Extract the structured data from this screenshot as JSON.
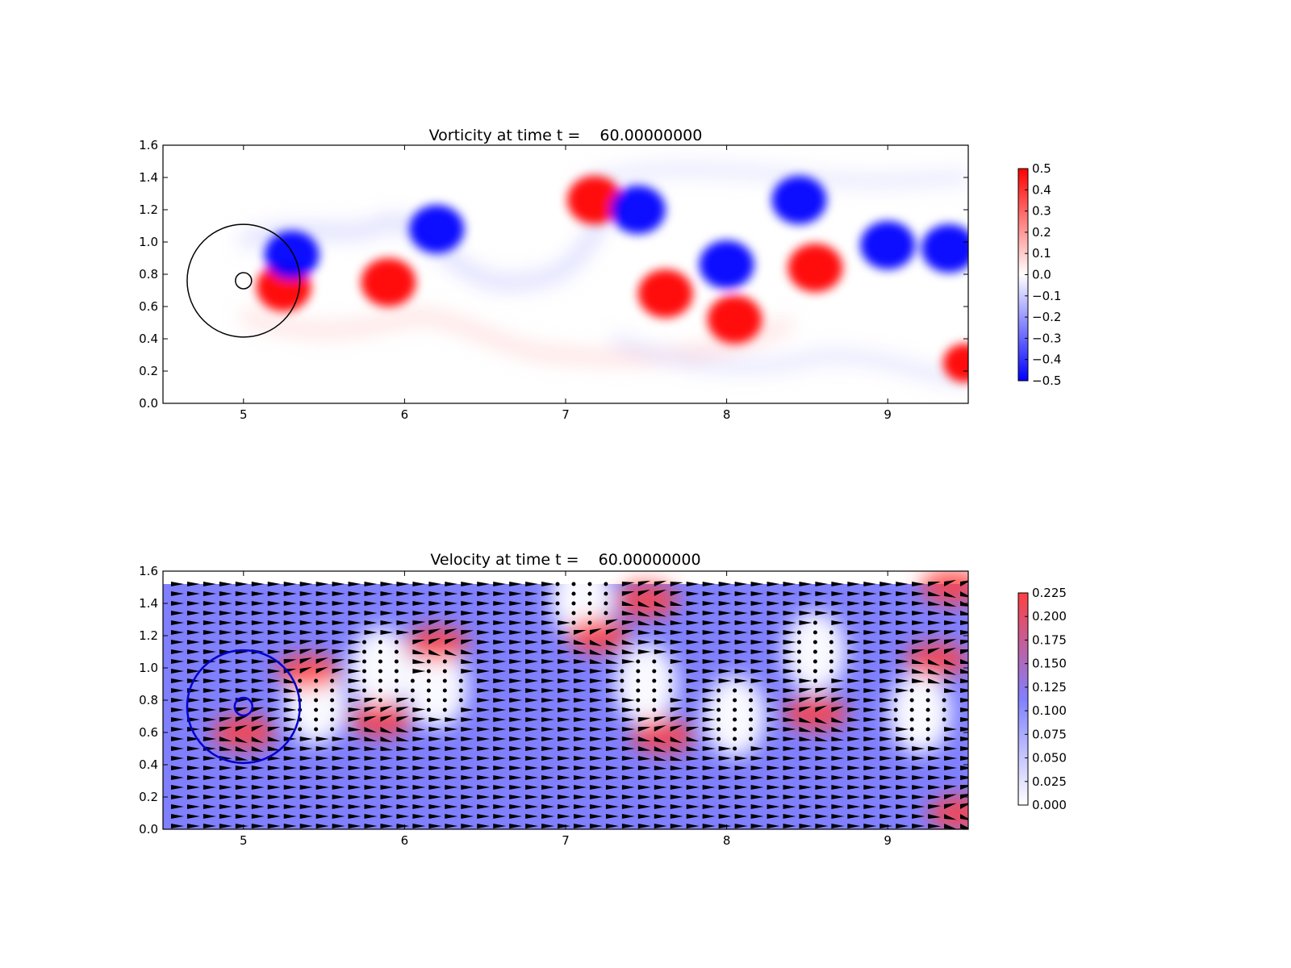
{
  "chart_data": [
    {
      "type": "heatmap",
      "title": "Vorticity at time t =    60.00000000",
      "xlabel": "",
      "ylabel": "",
      "xlim": [
        4.5,
        9.5
      ],
      "ylim": [
        0.0,
        1.6
      ],
      "x_ticks": [
        "5",
        "6",
        "7",
        "8",
        "9"
      ],
      "y_ticks": [
        "0.0",
        "0.2",
        "0.4",
        "0.6",
        "0.8",
        "1.0",
        "1.2",
        "1.4",
        "1.6"
      ],
      "colormap": "bwr",
      "colors": {
        "neg": "#0000ff",
        "zero": "#ffffff",
        "pos": "#ff0000"
      },
      "colorbar": {
        "range": [
          -0.5,
          0.5
        ],
        "ticks": [
          "0.5",
          "0.4",
          "0.3",
          "0.2",
          "0.1",
          "0.0",
          "−0.1",
          "−0.2",
          "−0.3",
          "−0.4",
          "−0.5"
        ]
      },
      "vortices": [
        {
          "x": 5.25,
          "y": 0.72,
          "sign": 1,
          "strength": 1.0
        },
        {
          "x": 5.3,
          "y": 0.92,
          "sign": -1,
          "strength": 1.0
        },
        {
          "x": 5.9,
          "y": 0.75,
          "sign": 1,
          "strength": 1.0
        },
        {
          "x": 6.2,
          "y": 1.08,
          "sign": -1,
          "strength": 1.0
        },
        {
          "x": 7.18,
          "y": 1.26,
          "sign": 1,
          "strength": 1.0
        },
        {
          "x": 7.45,
          "y": 1.2,
          "sign": -1,
          "strength": 1.0
        },
        {
          "x": 7.62,
          "y": 0.68,
          "sign": 1,
          "strength": 1.0
        },
        {
          "x": 8.0,
          "y": 0.86,
          "sign": -1,
          "strength": 1.0
        },
        {
          "x": 8.05,
          "y": 0.52,
          "sign": 1,
          "strength": 1.0
        },
        {
          "x": 8.45,
          "y": 1.26,
          "sign": -1,
          "strength": 1.0
        },
        {
          "x": 8.55,
          "y": 0.84,
          "sign": 1,
          "strength": 1.0
        },
        {
          "x": 9.0,
          "y": 0.98,
          "sign": -1,
          "strength": 1.0
        },
        {
          "x": 9.38,
          "y": 0.96,
          "sign": -1,
          "strength": 1.0
        },
        {
          "x": 9.48,
          "y": 0.25,
          "sign": 1,
          "strength": 0.8
        }
      ],
      "circles": [
        {
          "cx": 5.0,
          "cy": 0.76,
          "r": 0.35,
          "color": "#000000"
        },
        {
          "cx": 5.0,
          "cy": 0.76,
          "r": 0.05,
          "color": "#000000"
        }
      ]
    },
    {
      "type": "heatmap",
      "title": "Velocity at time t =    60.00000000",
      "xlabel": "",
      "ylabel": "",
      "xlim": [
        4.5,
        9.5
      ],
      "ylim": [
        0.0,
        1.6
      ],
      "x_ticks": [
        "5",
        "6",
        "7",
        "8",
        "9"
      ],
      "y_ticks": [
        "0.0",
        "0.2",
        "0.4",
        "0.6",
        "0.8",
        "1.0",
        "1.2",
        "1.4",
        "1.6"
      ],
      "field_extent_y": [
        0.0,
        1.52
      ],
      "colormap": "white-blue-red",
      "colors": {
        "low": "#ffffff",
        "mid": "#8080ff",
        "high": "#ff4040",
        "arrow": "#000000"
      },
      "colorbar": {
        "range": [
          0.0,
          0.225
        ],
        "ticks": [
          "0.225",
          "0.200",
          "0.175",
          "0.150",
          "0.125",
          "0.100",
          "0.075",
          "0.050",
          "0.025",
          "0.000"
        ]
      },
      "background_speed": 0.1,
      "slow_regions": [
        {
          "x": 5.45,
          "y": 0.78
        },
        {
          "x": 5.85,
          "y": 1.0
        },
        {
          "x": 6.2,
          "y": 0.88
        },
        {
          "x": 7.1,
          "y": 1.43
        },
        {
          "x": 7.5,
          "y": 0.9
        },
        {
          "x": 8.05,
          "y": 0.7
        },
        {
          "x": 8.55,
          "y": 1.1
        },
        {
          "x": 9.2,
          "y": 0.72
        }
      ],
      "fast_regions": [
        {
          "x": 5.0,
          "y": 0.6
        },
        {
          "x": 5.4,
          "y": 0.98
        },
        {
          "x": 5.85,
          "y": 0.68
        },
        {
          "x": 6.2,
          "y": 1.15
        },
        {
          "x": 7.2,
          "y": 1.2
        },
        {
          "x": 7.5,
          "y": 1.42
        },
        {
          "x": 7.6,
          "y": 0.58
        },
        {
          "x": 8.55,
          "y": 0.72
        },
        {
          "x": 9.3,
          "y": 1.05
        },
        {
          "x": 9.4,
          "y": 1.5
        },
        {
          "x": 9.45,
          "y": 0.1
        }
      ],
      "circles": [
        {
          "cx": 5.0,
          "cy": 0.76,
          "r": 0.35,
          "color": "#0000cc"
        },
        {
          "cx": 5.0,
          "cy": 0.76,
          "r": 0.055,
          "color": "#0000cc"
        }
      ]
    }
  ]
}
